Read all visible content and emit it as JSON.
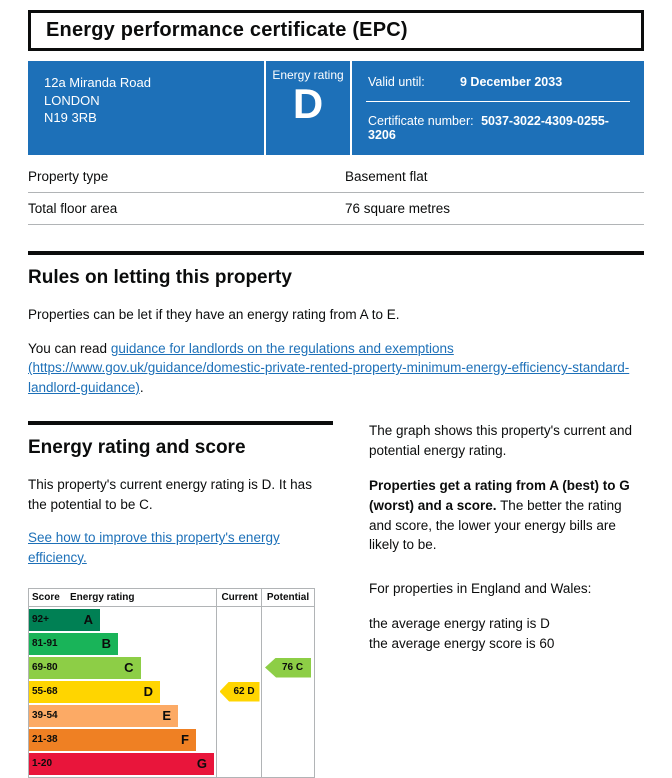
{
  "title": "Energy performance certificate (EPC)",
  "summary": {
    "address_lines": [
      "12a Miranda Road",
      "LONDON",
      "N19 3RB"
    ],
    "rating_label": "Energy rating",
    "rating_letter": "D",
    "valid_until_label": "Valid until:",
    "valid_until_value": "9 December 2033",
    "certificate_label": "Certificate number:",
    "certificate_value": "5037-3022-4309-0255-3206"
  },
  "property_details": {
    "rows": [
      {
        "label": "Property type",
        "value": "Basement flat"
      },
      {
        "label": "Total floor area",
        "value": "76 square metres"
      }
    ]
  },
  "rules": {
    "heading": "Rules on letting this property",
    "para1": "Properties can be let if they have an energy rating from A to E.",
    "para2_prefix": "You can read ",
    "link_text": "guidance for landlords on the regulations and exemptions (https://www.gov.uk/guidance/domestic-private-rented-property-minimum-energy-efficiency-standard-landlord-guidance)",
    "para2_suffix": "."
  },
  "rating_section": {
    "heading": "Energy rating and score",
    "para1": "This property's current energy rating is D. It has the potential to be C.",
    "improve_link": "See how to improve this property's energy efficiency.",
    "right": {
      "para1": "The graph shows this property's current and potential energy rating.",
      "para2_bold": "Properties get a rating from A (best) to G (worst) and a score.",
      "para2_rest": "The better the rating and score, the lower your energy bills are likely to be.",
      "para3": "For properties in England and Wales:",
      "avg_rating": "the average energy rating is D",
      "avg_score": "the average energy score is 60"
    }
  },
  "chart_data": {
    "type": "bar",
    "title": "EPC energy rating bands with current and potential scores",
    "headers": {
      "score": "Score",
      "rating": "Energy rating",
      "current": "Current",
      "potential": "Potential"
    },
    "bands": [
      {
        "score_range": "92+",
        "letter": "A",
        "color": "#008054",
        "width_pct": 22
      },
      {
        "score_range": "81-91",
        "letter": "B",
        "color": "#19b459",
        "width_pct": 34
      },
      {
        "score_range": "69-80",
        "letter": "C",
        "color": "#8dce46",
        "width_pct": 49
      },
      {
        "score_range": "55-68",
        "letter": "D",
        "color": "#ffd500",
        "width_pct": 62
      },
      {
        "score_range": "39-54",
        "letter": "E",
        "color": "#fcaa65",
        "width_pct": 74
      },
      {
        "score_range": "21-38",
        "letter": "F",
        "color": "#ef8023",
        "width_pct": 86
      },
      {
        "score_range": "1-20",
        "letter": "G",
        "color": "#e9153b",
        "width_pct": 98
      }
    ],
    "current": {
      "label": "62 D",
      "score": 62,
      "letter": "D"
    },
    "potential": {
      "label": "76 C",
      "score": 76,
      "letter": "C"
    }
  },
  "colors": {
    "banner_blue": "#1d70b8",
    "link_blue": "#1d70b8",
    "text_black": "#0b0c0c",
    "border_grey": "#b1b4b6"
  }
}
